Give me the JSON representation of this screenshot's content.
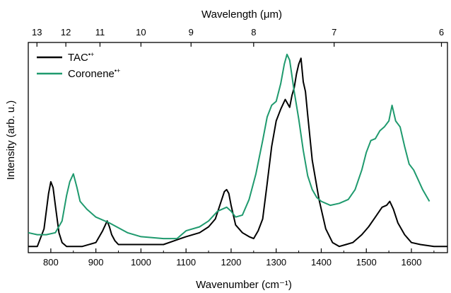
{
  "chart_data": {
    "type": "line",
    "title": "",
    "xlabel": "Wavenumber (cm⁻¹)",
    "ylabel": "Intensity (arb. u.)",
    "top_xlabel": "Wavelength (μm)",
    "xlim": [
      750,
      1680
    ],
    "ylim": [
      0,
      1
    ],
    "grid": false,
    "legend_position": "top-left",
    "x_ticks": [
      800,
      900,
      1000,
      1100,
      1200,
      1300,
      1400,
      1500,
      1600
    ],
    "x_tick_labels": [
      "800",
      "900",
      "1000",
      "1100",
      "1200",
      "1300",
      "1400",
      "1500",
      "1600"
    ],
    "top_ticks_um": [
      13,
      12,
      11,
      10,
      9,
      8,
      7,
      6
    ],
    "top_tick_labels": [
      "13",
      "12",
      "11",
      "10",
      "9",
      "8",
      "7",
      "6"
    ],
    "series": [
      {
        "name": "TAC•+",
        "name_main": "TAC",
        "name_sup": "•+",
        "color": "#000000",
        "x": [
          750,
          770,
          785,
          795,
          800,
          805,
          810,
          818,
          825,
          835,
          850,
          870,
          900,
          915,
          925,
          930,
          935,
          942,
          950,
          970,
          1000,
          1050,
          1100,
          1130,
          1150,
          1165,
          1175,
          1185,
          1190,
          1195,
          1200,
          1210,
          1225,
          1240,
          1250,
          1260,
          1270,
          1280,
          1290,
          1300,
          1310,
          1320,
          1330,
          1335,
          1340,
          1345,
          1350,
          1355,
          1360,
          1365,
          1370,
          1380,
          1395,
          1410,
          1425,
          1440,
          1455,
          1470,
          1490,
          1505,
          1520,
          1535,
          1545,
          1552,
          1560,
          1570,
          1585,
          1600,
          1620,
          1650,
          1680
        ],
        "y": [
          0.01,
          0.01,
          0.1,
          0.28,
          0.34,
          0.31,
          0.22,
          0.08,
          0.03,
          0.01,
          0.01,
          0.01,
          0.03,
          0.09,
          0.14,
          0.11,
          0.07,
          0.04,
          0.02,
          0.02,
          0.02,
          0.02,
          0.06,
          0.08,
          0.11,
          0.15,
          0.22,
          0.29,
          0.3,
          0.28,
          0.22,
          0.12,
          0.08,
          0.06,
          0.05,
          0.09,
          0.15,
          0.33,
          0.52,
          0.65,
          0.71,
          0.76,
          0.72,
          0.78,
          0.82,
          0.89,
          0.94,
          0.97,
          0.85,
          0.8,
          0.68,
          0.45,
          0.25,
          0.1,
          0.03,
          0.01,
          0.02,
          0.03,
          0.07,
          0.11,
          0.16,
          0.21,
          0.22,
          0.24,
          0.2,
          0.13,
          0.07,
          0.03,
          0.02,
          0.01,
          0.01
        ]
      },
      {
        "name": "Coronene•+",
        "name_main": "Coronene",
        "name_sup": "•+",
        "color": "#1f9a6e",
        "x": [
          750,
          770,
          790,
          810,
          825,
          835,
          842,
          850,
          858,
          865,
          880,
          900,
          930,
          970,
          1000,
          1050,
          1080,
          1100,
          1130,
          1150,
          1170,
          1190,
          1200,
          1210,
          1225,
          1240,
          1255,
          1270,
          1280,
          1290,
          1300,
          1310,
          1318,
          1324,
          1330,
          1335,
          1340,
          1350,
          1360,
          1370,
          1380,
          1390,
          1400,
          1420,
          1440,
          1460,
          1475,
          1490,
          1500,
          1510,
          1520,
          1530,
          1540,
          1550,
          1557,
          1565,
          1575,
          1585,
          1595,
          1605,
          1615,
          1625,
          1635,
          1640
        ],
        "y": [
          0.08,
          0.07,
          0.07,
          0.08,
          0.14,
          0.27,
          0.34,
          0.38,
          0.31,
          0.24,
          0.2,
          0.16,
          0.13,
          0.08,
          0.06,
          0.05,
          0.05,
          0.09,
          0.11,
          0.14,
          0.19,
          0.21,
          0.19,
          0.16,
          0.17,
          0.25,
          0.38,
          0.55,
          0.67,
          0.73,
          0.75,
          0.84,
          0.94,
          0.99,
          0.96,
          0.88,
          0.8,
          0.66,
          0.5,
          0.37,
          0.3,
          0.26,
          0.24,
          0.22,
          0.23,
          0.25,
          0.3,
          0.4,
          0.49,
          0.55,
          0.56,
          0.6,
          0.62,
          0.65,
          0.73,
          0.65,
          0.62,
          0.52,
          0.43,
          0.4,
          0.35,
          0.3,
          0.26,
          0.24
        ]
      }
    ]
  }
}
